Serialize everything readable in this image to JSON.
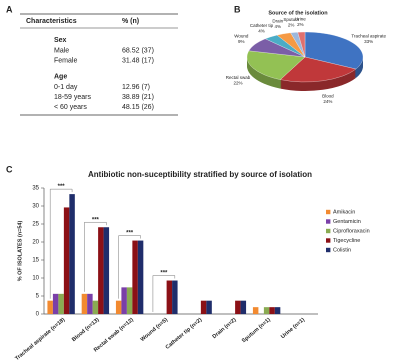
{
  "table": {
    "panel": "A",
    "header": [
      "Characteristics",
      "% (n)"
    ],
    "groups": [
      {
        "title": "Sex",
        "rows": [
          [
            "Male",
            "68.52 (37)"
          ],
          [
            "Female",
            "31.48 (17)"
          ]
        ]
      },
      {
        "title": "Age",
        "rows": [
          [
            "0-1 day",
            "12.96 (7)"
          ],
          [
            "18-59 years",
            "38.89 (21)"
          ],
          [
            "< 60 years",
            "48.15 (26)"
          ]
        ]
      }
    ]
  },
  "chart_data": [
    {
      "type": "pie",
      "panel": "B",
      "title": "Source of the isolation",
      "categories": [
        "Tracheal aspirate",
        "Blood",
        "Rectal swab",
        "Wound",
        "Catheter tip",
        "Drain",
        "Sputum",
        "Urine"
      ],
      "values": [
        33,
        24,
        22,
        9,
        4,
        4,
        2,
        2
      ],
      "value_labels": [
        "33%",
        "24%",
        "22%",
        "9%",
        "4%",
        "4%",
        "2%",
        "2%"
      ],
      "colors": [
        "#3f73c2",
        "#c0383a",
        "#93c154",
        "#7b5ea7",
        "#4bacc6",
        "#f59a45",
        "#9cb8dc",
        "#e0706e"
      ]
    },
    {
      "type": "bar",
      "panel": "C",
      "title": "Antibiotic non-suceptibility stratified by source of isolation",
      "y_label": "% OF ISOLATES (n=54)",
      "categories": [
        "Tracheal aspirate (n=18)",
        "Blood (n=13)",
        "Rectal swab (n=12)",
        "Wound (n=5)",
        "Catheter tip (n=2)",
        "Drain (n=2)",
        "Sputum (n=1)",
        "Urine (n=1)"
      ],
      "series": [
        {
          "name": "Amikacin",
          "color": "#f28a30",
          "values": [
            3.7,
            5.6,
            3.7,
            0,
            0,
            0,
            1.9,
            0
          ]
        },
        {
          "name": "Gentamicin",
          "color": "#7a3fa8",
          "values": [
            5.6,
            5.6,
            7.4,
            0,
            0,
            0,
            0,
            0
          ]
        },
        {
          "name": "Ciprofloraxacin",
          "color": "#8aab52",
          "values": [
            5.6,
            3.7,
            7.4,
            0,
            0,
            0,
            1.9,
            0
          ]
        },
        {
          "name": "Tigecycline",
          "color": "#8b1016",
          "values": [
            29.6,
            24.1,
            20.4,
            9.3,
            3.7,
            3.7,
            1.9,
            0
          ]
        },
        {
          "name": "Colistin",
          "color": "#1f2d6b",
          "values": [
            33.3,
            24.1,
            20.4,
            9.3,
            3.7,
            3.7,
            1.9,
            0
          ]
        }
      ],
      "ylim": [
        0,
        35
      ],
      "yticks": [
        0,
        5,
        10,
        15,
        20,
        25,
        30,
        35
      ],
      "annotations": [
        "***",
        "***",
        "***",
        "***"
      ],
      "legend": "right"
    }
  ]
}
